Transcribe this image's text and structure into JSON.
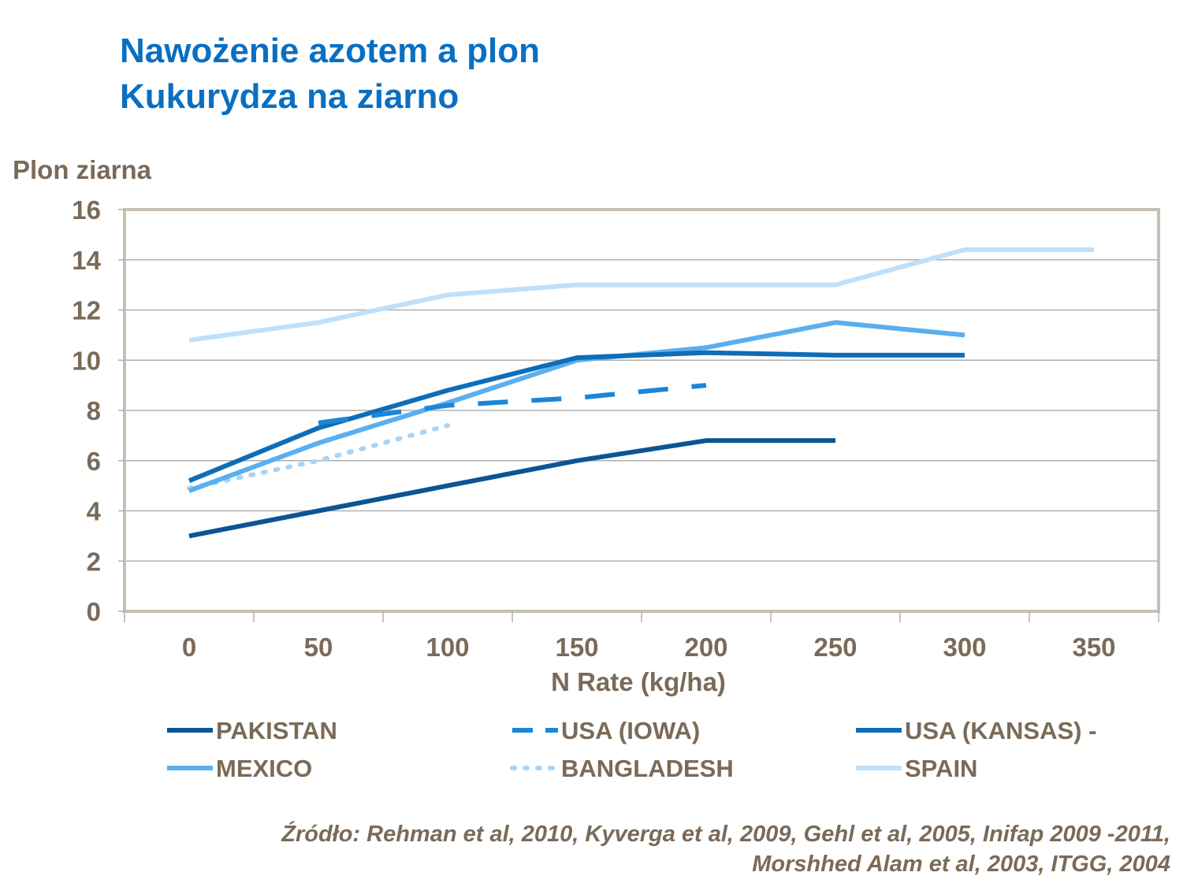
{
  "title": {
    "line1": "Nawożenie azotem a plon",
    "line2": "Kukurydza na ziarno"
  },
  "source": {
    "line1": "Źródło: Rehman et al, 2010, Kyverga et al, 2009, Gehl et al, 2005, Inifap 2009 -2011,",
    "line2": "Morshhed Alam et al, 2003, ITGG, 2004"
  },
  "colors": {
    "title": "#0a6fc2",
    "text": "#7a6a58",
    "grid": "#b0b0b0",
    "frame": "#c8bfb3"
  },
  "chart_data": {
    "type": "line",
    "title": "",
    "xlabel": "N Rate (kg/ha)",
    "ylabel": "Plon ziarna",
    "xlim": [
      -25,
      375
    ],
    "ylim": [
      0,
      16
    ],
    "xticks": [
      0,
      50,
      100,
      150,
      200,
      250,
      300,
      350
    ],
    "yticks": [
      0,
      2,
      4,
      6,
      8,
      10,
      12,
      14,
      16
    ],
    "grid": true,
    "legend_position": "bottom",
    "series": [
      {
        "name": "PAKISTAN",
        "color": "#0d5494",
        "style": "solid",
        "x": [
          0,
          50,
          100,
          150,
          200,
          250
        ],
        "y": [
          3.0,
          4.0,
          5.0,
          6.0,
          6.8,
          6.8
        ]
      },
      {
        "name": "USA (IOWA)",
        "color": "#1a86d8",
        "style": "dashed",
        "x": [
          50,
          100,
          150,
          200
        ],
        "y": [
          7.5,
          8.2,
          8.5,
          9.0
        ]
      },
      {
        "name": "USA (KANSAS) -",
        "color": "#0e6db7",
        "style": "solid",
        "x": [
          0,
          50,
          100,
          150,
          200,
          250,
          300
        ],
        "y": [
          5.2,
          7.3,
          8.8,
          10.1,
          10.3,
          10.2,
          10.2
        ]
      },
      {
        "name": "MEXICO",
        "color": "#5aaff0",
        "style": "solid",
        "x": [
          0,
          50,
          100,
          150,
          200,
          250,
          300
        ],
        "y": [
          4.8,
          6.7,
          8.3,
          10.0,
          10.5,
          11.5,
          11.0
        ]
      },
      {
        "name": "BANGLADESH",
        "color": "#a9d4f5",
        "style": "dotted",
        "x": [
          0,
          50,
          100
        ],
        "y": [
          4.9,
          6.0,
          7.4
        ]
      },
      {
        "name": "SPAIN",
        "color": "#bfe0fa",
        "style": "solid",
        "x": [
          0,
          50,
          100,
          150,
          200,
          250,
          300,
          350
        ],
        "y": [
          10.8,
          11.5,
          12.6,
          13.0,
          13.0,
          13.0,
          14.4,
          14.4
        ]
      }
    ]
  }
}
